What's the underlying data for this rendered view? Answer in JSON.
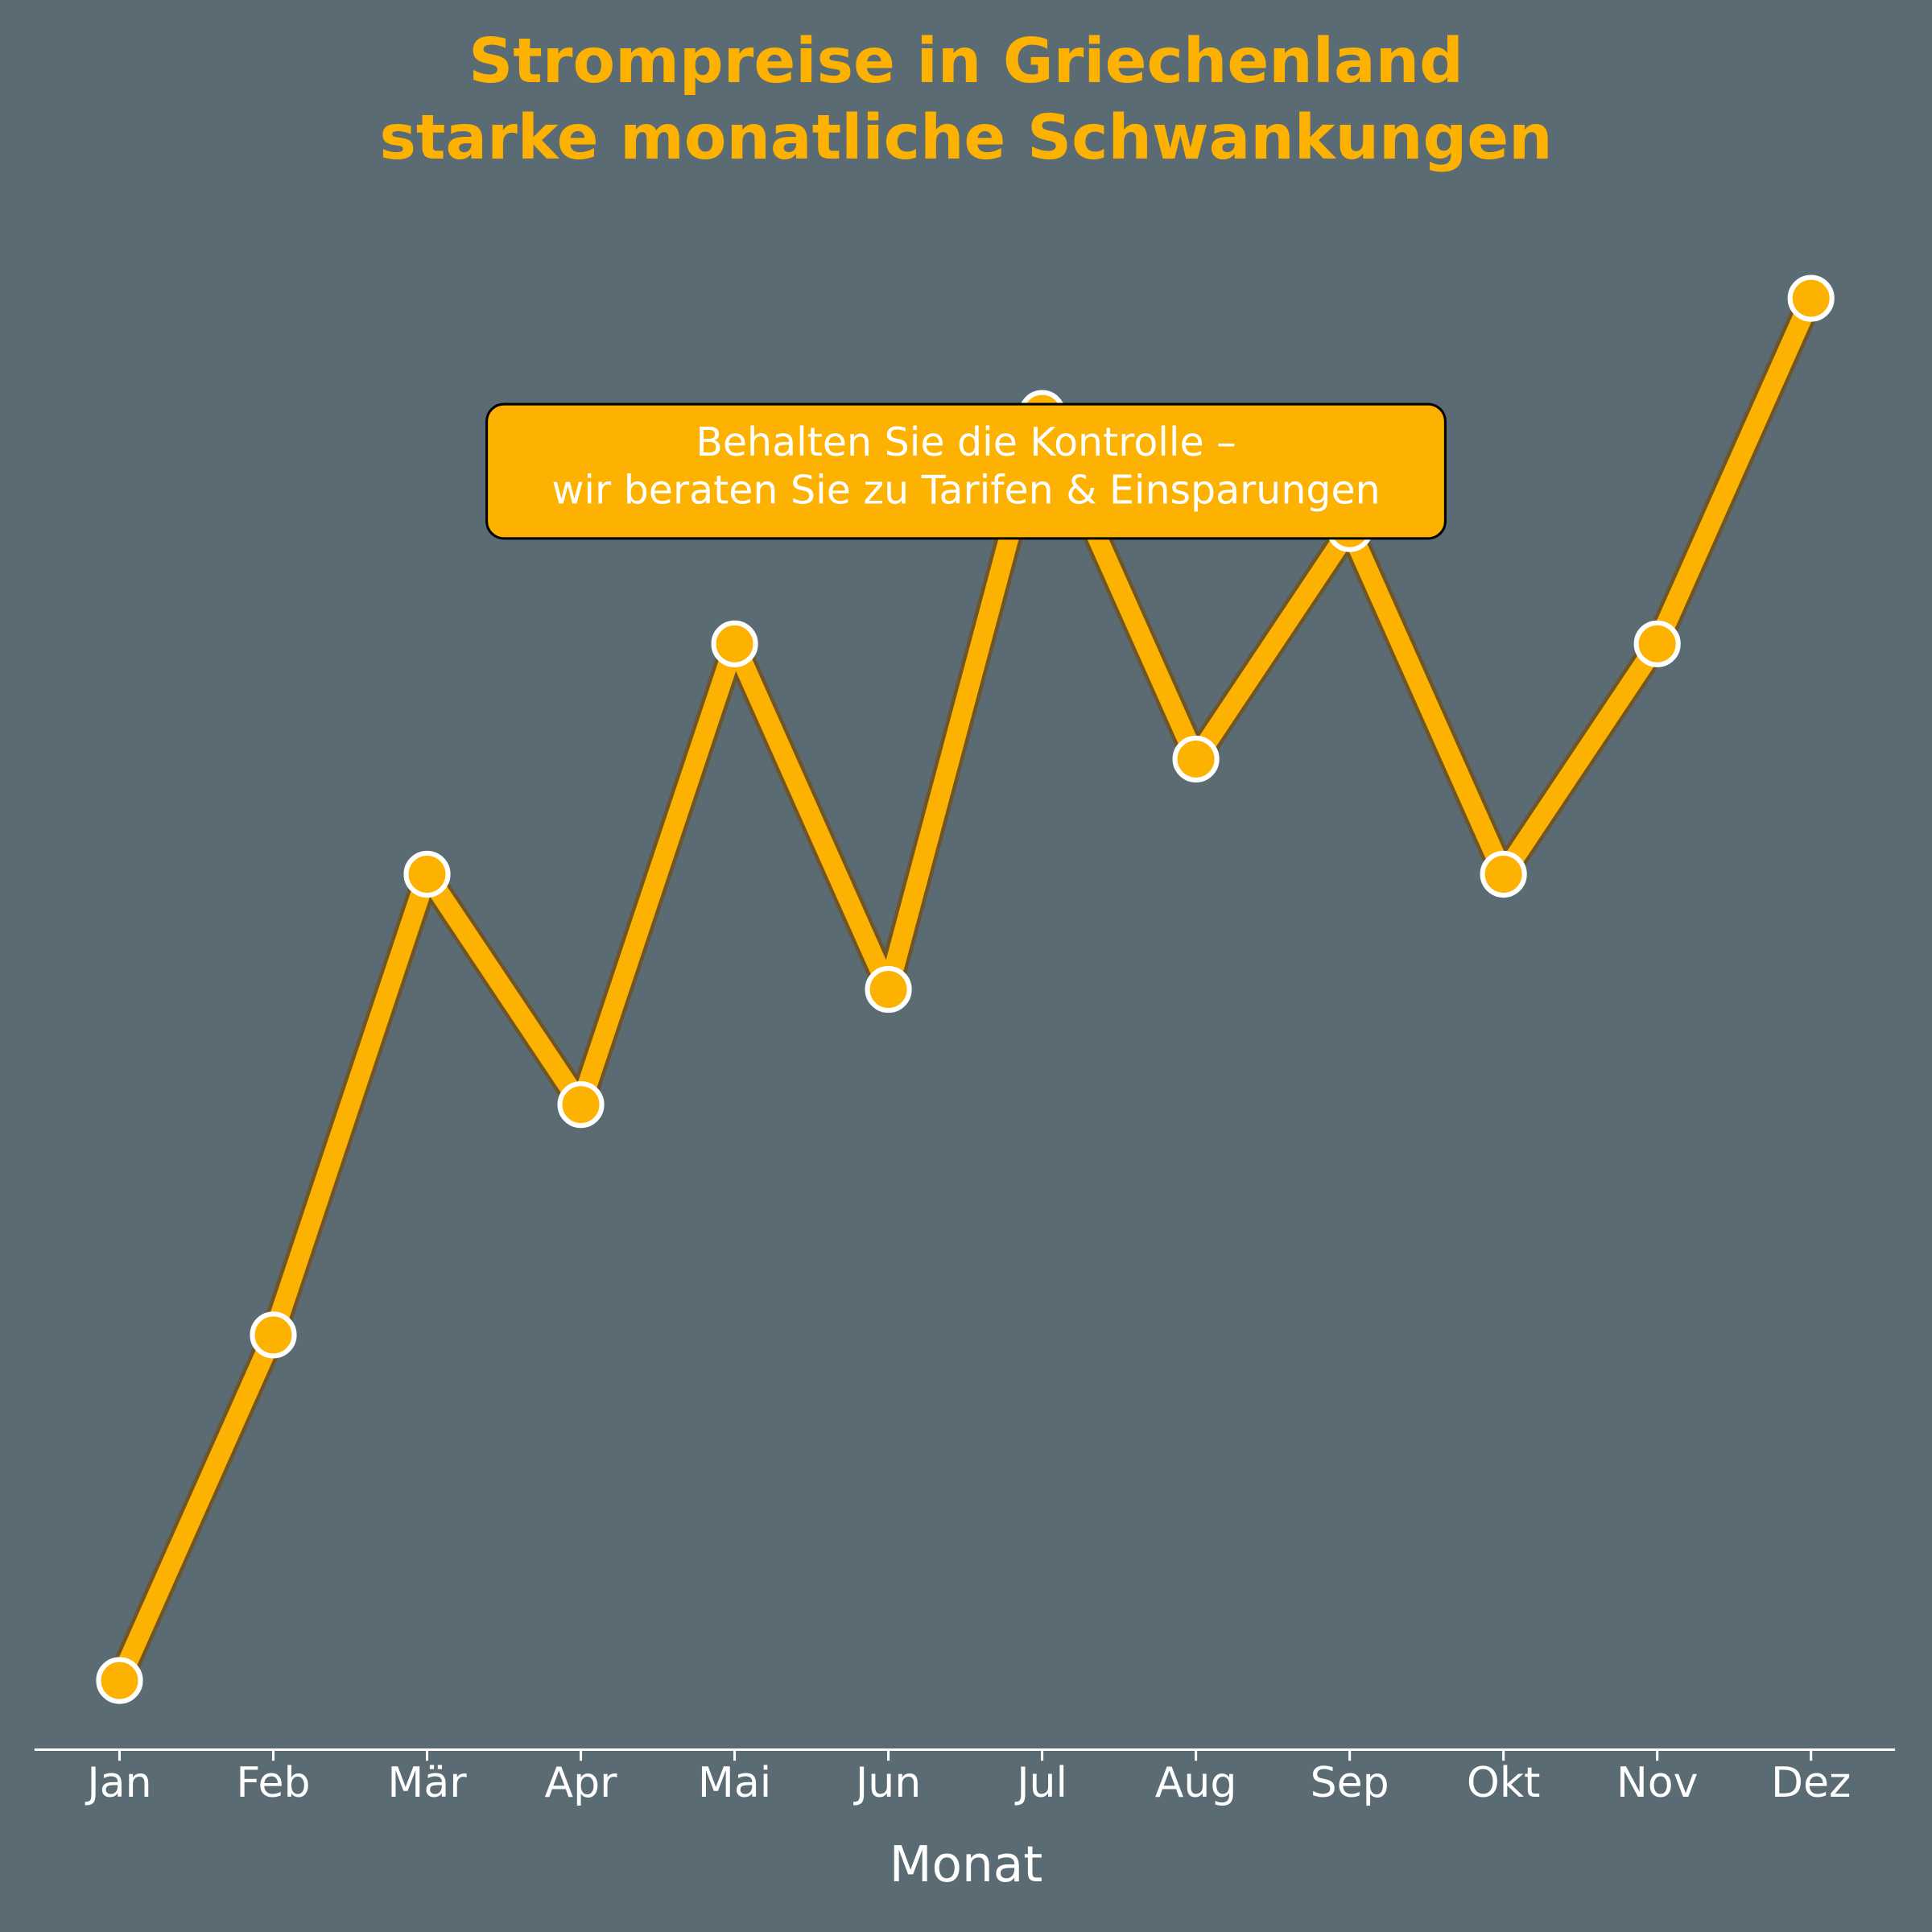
{
  "chart_data": {
    "type": "line",
    "title": [
      "Strompreise in Griechenland",
      "starke monatliche Schwankungen"
    ],
    "xlabel": "Monat",
    "categories": [
      "Jan",
      "Feb",
      "Mär",
      "Apr",
      "Mai",
      "Jun",
      "Jul",
      "Aug",
      "Sep",
      "Okt",
      "Nov",
      "Dez"
    ],
    "values": [
      0,
      3,
      7,
      5,
      9,
      6,
      11,
      8,
      10,
      7,
      9,
      12
    ],
    "color": "#fdb100",
    "ylim": [
      -0.6,
      12.6
    ],
    "annotation": [
      "Behalten Sie die Kontrolle –",
      "wir beraten Sie zu Tarifen & Einsparungen"
    ]
  }
}
